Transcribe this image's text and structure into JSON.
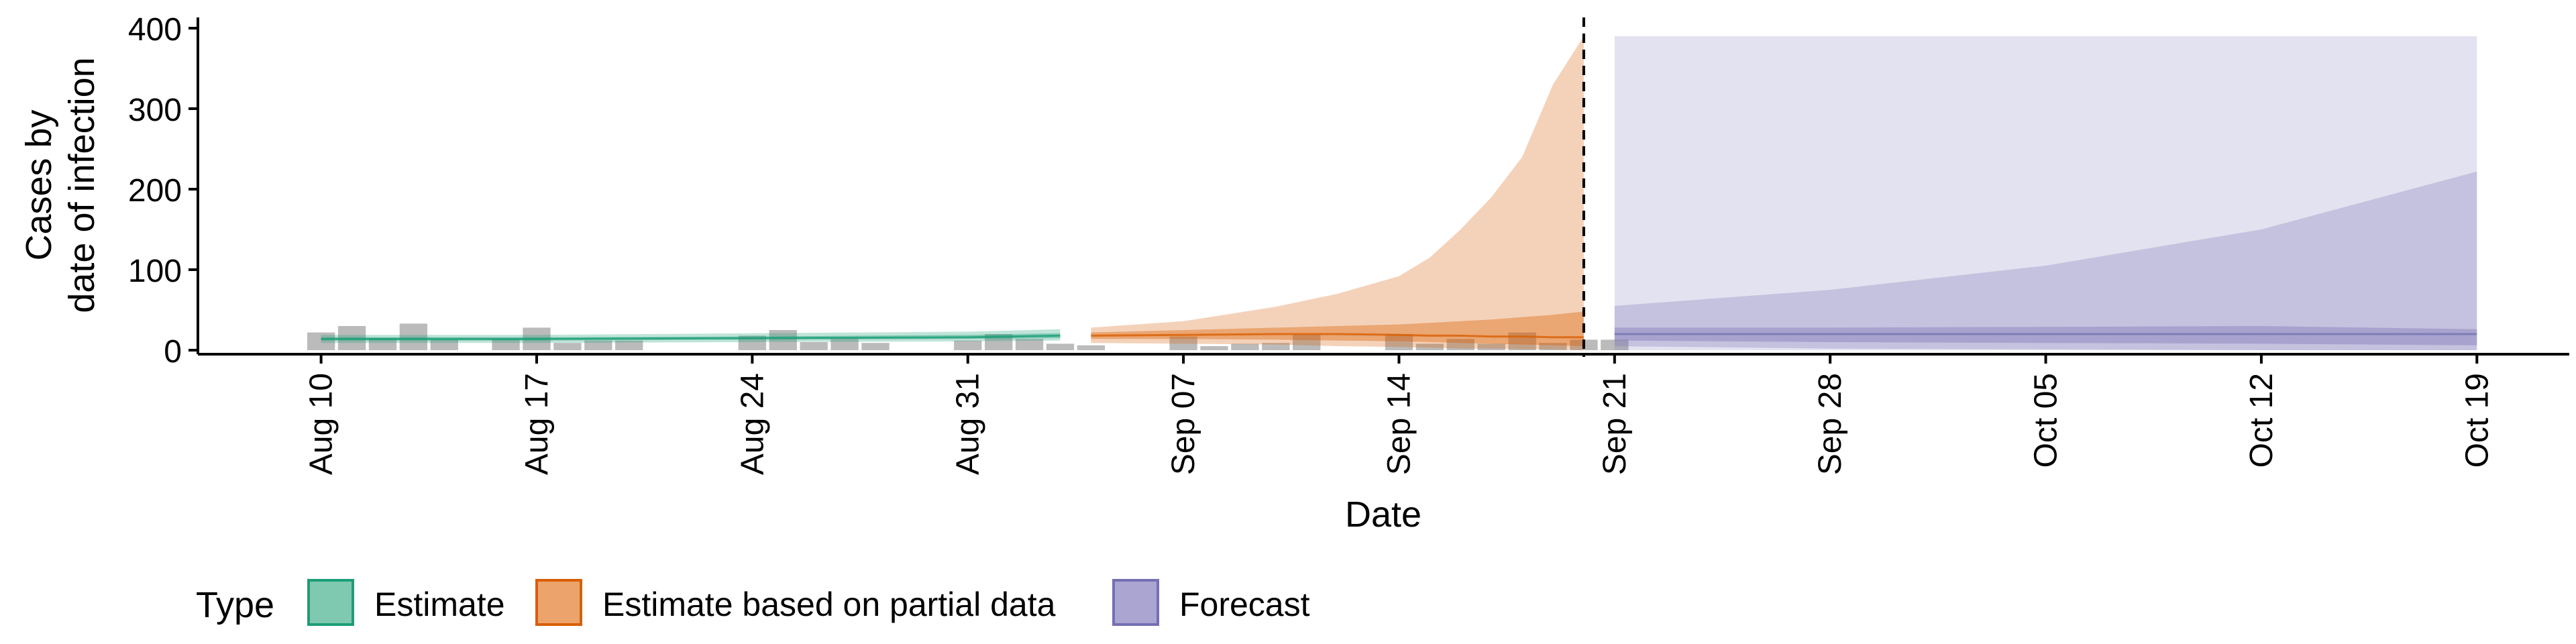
{
  "chart_data": {
    "type": "area",
    "ylabel_lines": [
      "Cases by",
      "date of infection"
    ],
    "xlabel": "Date",
    "ylim": [
      0,
      410
    ],
    "y_ticks": [
      0,
      100,
      200,
      300,
      400
    ],
    "x_domain": [
      "2020-08-06",
      "2020-10-22"
    ],
    "x_ticks": [
      {
        "date": "2020-08-10",
        "label": "Aug 10"
      },
      {
        "date": "2020-08-17",
        "label": "Aug 17"
      },
      {
        "date": "2020-08-24",
        "label": "Aug 24"
      },
      {
        "date": "2020-08-31",
        "label": "Aug 31"
      },
      {
        "date": "2020-09-07",
        "label": "Sep 07"
      },
      {
        "date": "2020-09-14",
        "label": "Sep 14"
      },
      {
        "date": "2020-09-21",
        "label": "Sep 21"
      },
      {
        "date": "2020-09-28",
        "label": "Sep 28"
      },
      {
        "date": "2020-10-05",
        "label": "Oct 05"
      },
      {
        "date": "2020-10-12",
        "label": "Oct 12"
      },
      {
        "date": "2020-10-19",
        "label": "Oct 19"
      }
    ],
    "vline_date": "2020-09-20",
    "grid": false,
    "legend": {
      "title": "Type",
      "position": "bottom",
      "entries": [
        {
          "label": "Estimate",
          "fill": "#7fc9b0",
          "stroke": "#1b9e77"
        },
        {
          "label": "Estimate based on partial data",
          "fill": "#eca46c",
          "stroke": "#d95f02"
        },
        {
          "label": "Forecast",
          "fill": "#aaa5d1",
          "stroke": "#7570b3"
        }
      ]
    },
    "colors": {
      "estimate": "#1b9e77",
      "partial": "#d95f02",
      "forecast": "#7570b3",
      "observed": "#9e9e9e"
    },
    "observed_cases": {
      "start_date": "2020-08-10",
      "values": [
        22,
        30,
        15,
        33,
        13,
        0,
        14,
        28,
        9,
        12,
        12,
        0,
        0,
        0,
        18,
        25,
        10,
        14,
        9,
        0,
        0,
        12,
        20,
        14,
        8,
        6,
        0,
        0,
        17,
        5,
        8,
        9,
        19,
        0,
        0,
        20,
        8,
        14,
        8,
        22,
        9,
        13,
        13
      ]
    },
    "series": [
      {
        "name": "Estimate",
        "dates": [
          "2020-08-10",
          "2020-08-17",
          "2020-08-24",
          "2020-08-31",
          "2020-09-03"
        ],
        "median": [
          14,
          14,
          15,
          16,
          18
        ],
        "inner_lower": [
          12,
          12,
          13,
          14,
          15
        ],
        "inner_upper": [
          16,
          16,
          17,
          19,
          21
        ],
        "outer_lower": [
          9,
          9,
          10,
          11,
          12
        ],
        "outer_upper": [
          19,
          19,
          21,
          23,
          26
        ]
      },
      {
        "name": "Estimate based on partial data",
        "dates": [
          "2020-09-04",
          "2020-09-07",
          "2020-09-10",
          "2020-09-12",
          "2020-09-14",
          "2020-09-15",
          "2020-09-16",
          "2020-09-17",
          "2020-09-18",
          "2020-09-19",
          "2020-09-20"
        ],
        "median": [
          18,
          19,
          20,
          20,
          19,
          18,
          18,
          17,
          17,
          16,
          16
        ],
        "inner_lower": [
          14,
          14,
          13,
          12,
          11,
          10,
          9,
          8,
          7,
          6,
          5
        ],
        "inner_upper": [
          22,
          25,
          28,
          30,
          32,
          34,
          36,
          38,
          41,
          44,
          48
        ],
        "outer_lower": [
          9,
          8,
          7,
          5,
          4,
          3,
          2,
          2,
          1,
          1,
          0
        ],
        "outer_upper": [
          28,
          36,
          54,
          70,
          92,
          115,
          150,
          190,
          240,
          330,
          390
        ]
      },
      {
        "name": "Forecast",
        "dates": [
          "2020-09-21",
          "2020-09-28",
          "2020-10-05",
          "2020-10-12",
          "2020-10-19"
        ],
        "median": [
          20,
          20,
          20,
          20,
          20
        ],
        "inner_lower": [
          12,
          10,
          9,
          8,
          6
        ],
        "inner_upper": [
          28,
          28,
          29,
          30,
          26
        ],
        "outer_lower": [
          5,
          2,
          1,
          0,
          0
        ],
        "outer_upper": [
          55,
          75,
          105,
          150,
          222
        ],
        "ribbon_upper": 390
      }
    ]
  }
}
